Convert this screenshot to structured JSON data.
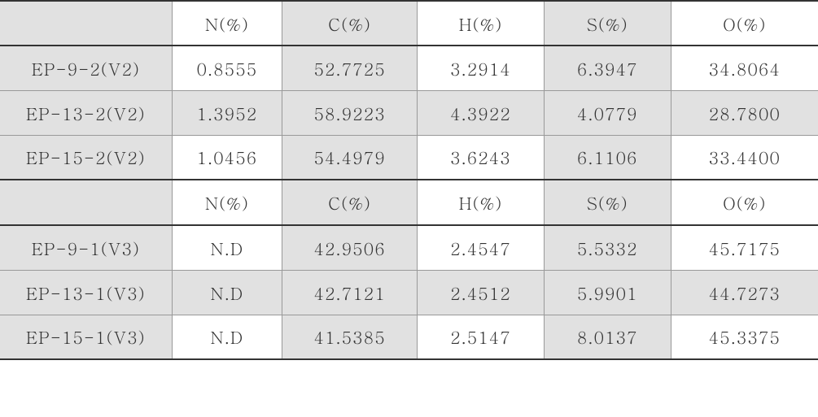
{
  "table": {
    "type": "table",
    "font_family": "Batang, Times New Roman, serif",
    "font_size_pt": 16,
    "text_color": "#333333",
    "background_color": "#ffffff",
    "shaded_color": "#e1e1e1",
    "border_heavy_color": "#333333",
    "border_light_color": "#999999",
    "column_widths_pct": [
      21,
      13.5,
      16.5,
      15.5,
      15.5,
      18
    ],
    "columns": [
      "",
      "N(%)",
      "C(%)",
      "H(%)",
      "S(%)",
      "O(%)"
    ],
    "block1_rows": [
      {
        "label": "EP-9-2(V2)",
        "n": "0.8555",
        "c": "52.7725",
        "h": "3.2914",
        "s": "6.3947",
        "o": "34.8064",
        "shaded": false
      },
      {
        "label": "EP-13-2(V2)",
        "n": "1.3952",
        "c": "58.9223",
        "h": "4.3922",
        "s": "4.0779",
        "o": "28.7800",
        "shaded": true
      },
      {
        "label": "EP-15-2(V2)",
        "n": "1.0456",
        "c": "54.4979",
        "h": "3.6243",
        "s": "6.1106",
        "o": "33.4400",
        "shaded": false
      }
    ],
    "block2_rows": [
      {
        "label": "EP-9-1(V3)",
        "n": "N.D",
        "c": "42.9506",
        "h": "2.4547",
        "s": "5.5332",
        "o": "45.7175",
        "shaded": false
      },
      {
        "label": "EP-13-1(V3)",
        "n": "N.D",
        "c": "42.7121",
        "h": "2.4512",
        "s": "5.9901",
        "o": "44.7273",
        "shaded": true
      },
      {
        "label": "EP-15-1(V3)",
        "n": "N.D",
        "c": "41.5385",
        "h": "2.5147",
        "s": "8.0137",
        "o": "45.3375",
        "shaded": false
      }
    ]
  }
}
